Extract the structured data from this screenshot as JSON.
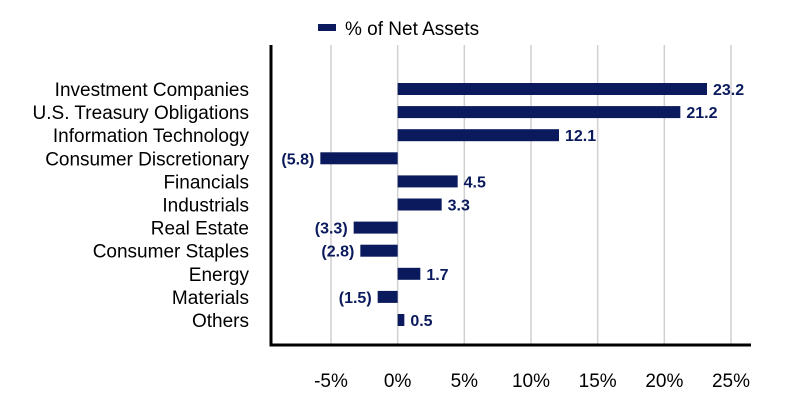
{
  "chart_data": {
    "type": "bar",
    "orientation": "horizontal",
    "categories": [
      "Investment Companies",
      "U.S. Treasury Obligations",
      "Information Technology",
      "Consumer Discretionary",
      "Financials",
      "Industrials",
      "Real Estate",
      "Consumer Staples",
      "Energy",
      "Materials",
      "Others"
    ],
    "series": [
      {
        "name": "% of Net Assets",
        "values": [
          23.2,
          21.2,
          12.1,
          -5.8,
          4.5,
          3.3,
          -3.3,
          -2.8,
          1.7,
          -1.5,
          0.5
        ],
        "labels": [
          "23.2",
          "21.2",
          "12.1",
          "(5.8)",
          "4.5",
          "3.3",
          "(3.3)",
          "(2.8)",
          "1.7",
          "(1.5)",
          "0.5"
        ],
        "color": "#0a1a5c"
      }
    ],
    "xticks": [
      -5,
      0,
      5,
      10,
      15,
      20,
      25
    ],
    "xtick_labels": [
      "-5%",
      "0%",
      "5%",
      "10%",
      "15%",
      "20%",
      "25%"
    ],
    "xlim": [
      -9.5,
      26.5
    ],
    "grid": "vertical",
    "grid_color": "#d0d0d0",
    "legend_position": "top",
    "title": "",
    "xlabel": "",
    "ylabel": ""
  }
}
